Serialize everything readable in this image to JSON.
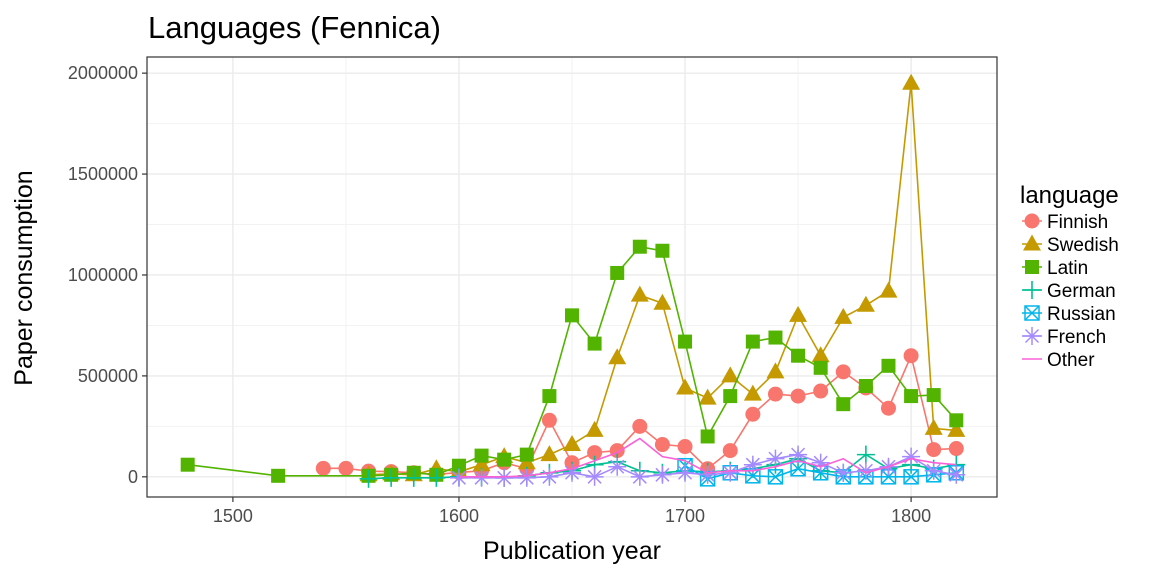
{
  "chart_data": {
    "type": "line",
    "title": "Languages (Fennica)",
    "xlabel": "Publication year",
    "ylabel": "Paper consumption",
    "xlim": [
      1462,
      1838
    ],
    "ylim": [
      -100000,
      2080000
    ],
    "x_ticks": [
      1500,
      1600,
      1700,
      1800
    ],
    "x_minor_ticks": [
      1550,
      1650,
      1750
    ],
    "y_ticks": [
      0,
      500000,
      1000000,
      1500000,
      2000000
    ],
    "y_minor_ticks": [
      250000,
      750000,
      1250000,
      1750000
    ],
    "x_tick_labels": [
      "1500",
      "1600",
      "1700",
      "1800"
    ],
    "y_tick_labels": [
      "0",
      "500000",
      "1000000",
      "1500000",
      "2000000"
    ],
    "grid": true,
    "legend": {
      "title": "language",
      "position": "right"
    },
    "series": [
      {
        "name": "Finnish",
        "color": "#F8766D",
        "marker": "circle",
        "x": [
          1540,
          1550,
          1560,
          1570,
          1580,
          1590,
          1600,
          1610,
          1620,
          1630,
          1640,
          1650,
          1660,
          1670,
          1680,
          1690,
          1700,
          1710,
          1720,
          1730,
          1740,
          1750,
          1760,
          1770,
          1780,
          1790,
          1800,
          1810,
          1820
        ],
        "y": [
          42000,
          42000,
          28000,
          26000,
          20000,
          12000,
          22000,
          30000,
          70000,
          40000,
          280000,
          70000,
          120000,
          130000,
          250000,
          160000,
          150000,
          40000,
          130000,
          310000,
          410000,
          400000,
          425000,
          520000,
          440000,
          340000,
          600000,
          135000,
          140000
        ]
      },
      {
        "name": "Swedish",
        "color": "#C49A00",
        "marker": "triangle",
        "x": [
          1560,
          1570,
          1580,
          1590,
          1600,
          1610,
          1620,
          1630,
          1640,
          1650,
          1660,
          1670,
          1680,
          1690,
          1700,
          1710,
          1720,
          1730,
          1740,
          1750,
          1760,
          1770,
          1780,
          1790,
          1800,
          1810,
          1820
        ],
        "y": [
          10000,
          15000,
          10000,
          40000,
          25000,
          60000,
          100000,
          70000,
          110000,
          160000,
          230000,
          590000,
          900000,
          860000,
          440000,
          390000,
          500000,
          410000,
          520000,
          800000,
          600000,
          790000,
          850000,
          920000,
          1950000,
          240000,
          230000
        ]
      },
      {
        "name": "Latin",
        "color": "#53B400",
        "marker": "square",
        "x": [
          1480,
          1520,
          1560,
          1570,
          1580,
          1590,
          1600,
          1610,
          1620,
          1630,
          1640,
          1650,
          1660,
          1670,
          1680,
          1690,
          1700,
          1710,
          1720,
          1730,
          1740,
          1750,
          1760,
          1770,
          1780,
          1790,
          1800,
          1810,
          1820
        ],
        "y": [
          60000,
          5000,
          5000,
          10000,
          20000,
          10000,
          55000,
          105000,
          85000,
          110000,
          400000,
          800000,
          660000,
          1010000,
          1140000,
          1120000,
          670000,
          200000,
          400000,
          670000,
          690000,
          600000,
          540000,
          360000,
          450000,
          550000,
          400000,
          405000,
          280000
        ]
      },
      {
        "name": "German",
        "color": "#00C094",
        "marker": "plus",
        "x": [
          1560,
          1570,
          1580,
          1590,
          1600,
          1610,
          1620,
          1630,
          1640,
          1650,
          1660,
          1670,
          1680,
          1690,
          1700,
          1710,
          1720,
          1730,
          1740,
          1750,
          1760,
          1770,
          1780,
          1790,
          1800,
          1810,
          1820
        ],
        "y": [
          -10000,
          -5000,
          -5000,
          -5000,
          0,
          0,
          -5000,
          5000,
          20000,
          30000,
          60000,
          75000,
          30000,
          20000,
          30000,
          25000,
          30000,
          40000,
          60000,
          90000,
          30000,
          20000,
          110000,
          40000,
          60000,
          40000,
          60000
        ]
      },
      {
        "name": "Russian",
        "color": "#00B6EB",
        "marker": "square-x",
        "x": [
          1700,
          1710,
          1720,
          1730,
          1740,
          1750,
          1760,
          1770,
          1780,
          1790,
          1800,
          1810,
          1820
        ],
        "y": [
          55000,
          -10000,
          20000,
          5000,
          0,
          40000,
          20000,
          0,
          0,
          0,
          0,
          10000,
          20000
        ]
      },
      {
        "name": "French",
        "color": "#A58AFF",
        "marker": "star",
        "x": [
          1600,
          1610,
          1620,
          1630,
          1640,
          1650,
          1660,
          1670,
          1680,
          1690,
          1700,
          1710,
          1720,
          1730,
          1740,
          1750,
          1760,
          1770,
          1780,
          1790,
          1800,
          1810,
          1820
        ],
        "y": [
          -5000,
          -5000,
          -5000,
          -5000,
          0,
          20000,
          0,
          50000,
          0,
          10000,
          20000,
          10000,
          20000,
          60000,
          90000,
          110000,
          70000,
          20000,
          30000,
          50000,
          100000,
          30000,
          10000
        ]
      },
      {
        "name": "Other",
        "color": "#FB61D7",
        "marker": "none",
        "x": [
          1600,
          1610,
          1620,
          1630,
          1640,
          1650,
          1660,
          1670,
          1680,
          1690,
          1700,
          1710,
          1720,
          1730,
          1740,
          1750,
          1760,
          1770,
          1780,
          1790,
          1800,
          1810,
          1820
        ],
        "y": [
          0,
          0,
          0,
          5000,
          20000,
          40000,
          80000,
          120000,
          190000,
          100000,
          80000,
          20000,
          30000,
          30000,
          50000,
          80000,
          50000,
          90000,
          20000,
          50000,
          90000,
          70000,
          60000
        ]
      }
    ]
  }
}
